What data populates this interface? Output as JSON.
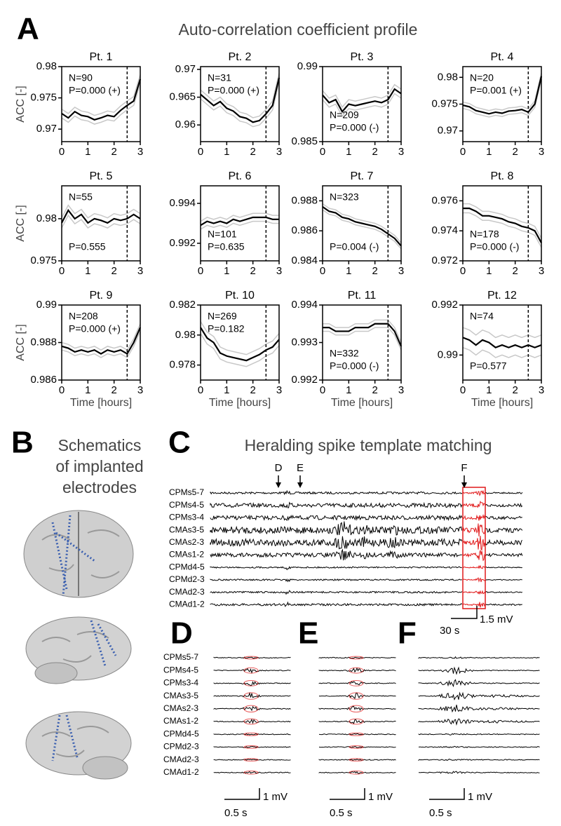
{
  "panel_a": {
    "letter": "A",
    "title": "Auto-correlation coefficient profile"
  },
  "chart_data": [
    {
      "type": "line",
      "title": "Pt. 1",
      "ylabel": "ACC [-]",
      "annotations": [
        "N=90",
        "P=0.000 (+)"
      ],
      "x": [
        0,
        0.25,
        0.5,
        0.75,
        1,
        1.25,
        1.5,
        1.75,
        2,
        2.25,
        2.5,
        2.75,
        3
      ],
      "xlim": [
        0,
        3
      ],
      "xticks": [
        0,
        1,
        2,
        3
      ],
      "ylim": [
        0.968,
        0.98
      ],
      "yticks": [
        0.97,
        0.975,
        0.98
      ],
      "vline": 2.5,
      "series": [
        {
          "color": "#000000",
          "error": 0.0007,
          "error_color": "#c8c8c8",
          "values": [
            0.9725,
            0.9718,
            0.9728,
            0.9722,
            0.972,
            0.9715,
            0.9718,
            0.9722,
            0.972,
            0.973,
            0.9738,
            0.9745,
            0.978
          ]
        }
      ]
    },
    {
      "type": "line",
      "title": "Pt. 2",
      "annotations": [
        "N=31",
        "P=0.000 (+)"
      ],
      "x": [
        0,
        0.25,
        0.5,
        0.75,
        1,
        1.25,
        1.5,
        1.75,
        2,
        2.25,
        2.5,
        2.75,
        3
      ],
      "xlim": [
        0,
        3
      ],
      "xticks": [
        0,
        1,
        2,
        3
      ],
      "ylim": [
        0.957,
        0.9705
      ],
      "yticks": [
        0.96,
        0.965,
        0.97
      ],
      "vline": 2.5,
      "series": [
        {
          "color": "#000000",
          "error": 0.0008,
          "error_color": "#c8c8c8",
          "values": [
            0.9655,
            0.9645,
            0.9635,
            0.9642,
            0.963,
            0.9625,
            0.9615,
            0.9612,
            0.9605,
            0.9608,
            0.962,
            0.9635,
            0.9685
          ]
        }
      ]
    },
    {
      "type": "line",
      "title": "Pt. 3",
      "annotations": [
        "N=209",
        "P=0.000 (-)"
      ],
      "x": [
        0,
        0.25,
        0.5,
        0.75,
        1,
        1.25,
        1.5,
        1.75,
        2,
        2.25,
        2.5,
        2.75,
        3
      ],
      "xlim": [
        0,
        3
      ],
      "xticks": [
        0,
        1,
        2,
        3
      ],
      "ylim": [
        0.985,
        0.99
      ],
      "yticks": [
        0.985,
        0.99
      ],
      "vline": 2.5,
      "series": [
        {
          "color": "#000000",
          "error": 0.0003,
          "error_color": "#c8c8c8",
          "values": [
            0.9881,
            0.9876,
            0.9878,
            0.987,
            0.9875,
            0.9874,
            0.9875,
            0.9876,
            0.9877,
            0.9876,
            0.9878,
            0.9885,
            0.9882
          ]
        }
      ]
    },
    {
      "type": "line",
      "title": "Pt. 4",
      "annotations": [
        "N=20",
        "P=0.001 (+)"
      ],
      "x": [
        0,
        0.25,
        0.5,
        0.75,
        1,
        1.25,
        1.5,
        1.75,
        2,
        2.25,
        2.5,
        2.75,
        3
      ],
      "xlim": [
        0,
        3
      ],
      "xticks": [
        0,
        1,
        2,
        3
      ],
      "ylim": [
        0.968,
        0.982
      ],
      "yticks": [
        0.97,
        0.975,
        0.98
      ],
      "vline": 2.5,
      "series": [
        {
          "color": "#000000",
          "error": 0.0006,
          "error_color": "#c8c8c8",
          "values": [
            0.9748,
            0.9745,
            0.9738,
            0.9735,
            0.9732,
            0.9735,
            0.9733,
            0.9737,
            0.9738,
            0.974,
            0.9735,
            0.975,
            0.9802
          ]
        }
      ]
    },
    {
      "type": "line",
      "title": "Pt. 5",
      "ylabel": "ACC [-]",
      "annotations": [
        "N=55",
        "P=0.555"
      ],
      "x": [
        0,
        0.25,
        0.5,
        0.75,
        1,
        1.25,
        1.5,
        1.75,
        2,
        2.25,
        2.5,
        2.75,
        3
      ],
      "xlim": [
        0,
        3
      ],
      "xticks": [
        0,
        1,
        2,
        3
      ],
      "ylim": [
        0.975,
        0.9839
      ],
      "yticks": [
        0.975,
        0.98
      ],
      "vline": 2.5,
      "series": [
        {
          "color": "#000000",
          "error": 0.0006,
          "error_color": "#c8c8c8",
          "values": [
            0.9795,
            0.981,
            0.98,
            0.9805,
            0.9795,
            0.98,
            0.9798,
            0.9795,
            0.98,
            0.9798,
            0.98,
            0.9805,
            0.98
          ]
        }
      ]
    },
    {
      "type": "line",
      "title": "Pt. 6",
      "annotations": [
        "N=101",
        "P=0.635"
      ],
      "x": [
        0,
        0.25,
        0.5,
        0.75,
        1,
        1.25,
        1.5,
        1.75,
        2,
        2.25,
        2.5,
        2.75,
        3
      ],
      "xlim": [
        0,
        3
      ],
      "xticks": [
        0,
        1,
        2,
        3
      ],
      "ylim": [
        0.99112,
        0.99488
      ],
      "yticks": [
        0.992,
        0.994
      ],
      "vline": 2.5,
      "series": [
        {
          "color": "#000000",
          "error": 0.0002,
          "error_color": "#c8c8c8",
          "values": [
            0.9929,
            0.9931,
            0.993,
            0.9931,
            0.993,
            0.9932,
            0.9931,
            0.9932,
            0.9933,
            0.9933,
            0.9933,
            0.9932,
            0.9932
          ]
        }
      ]
    },
    {
      "type": "line",
      "title": "Pt. 7",
      "annotations": [
        "N=323",
        "P=0.004 (-)"
      ],
      "x": [
        0,
        0.25,
        0.5,
        0.75,
        1,
        1.25,
        1.5,
        1.75,
        2,
        2.25,
        2.5,
        2.75,
        3
      ],
      "xlim": [
        0,
        3
      ],
      "xticks": [
        0,
        1,
        2,
        3
      ],
      "ylim": [
        0.984,
        0.989
      ],
      "yticks": [
        0.984,
        0.986,
        0.988
      ],
      "vline": 2.5,
      "series": [
        {
          "color": "#000000",
          "error": 0.0002,
          "error_color": "#c8c8c8",
          "values": [
            0.9876,
            0.9873,
            0.9872,
            0.9869,
            0.9868,
            0.9866,
            0.9865,
            0.9864,
            0.9863,
            0.9861,
            0.9858,
            0.9855,
            0.985
          ]
        }
      ]
    },
    {
      "type": "line",
      "title": "Pt. 8",
      "annotations": [
        "N=178",
        "P=0.000 (-)"
      ],
      "x": [
        0,
        0.25,
        0.5,
        0.75,
        1,
        1.25,
        1.5,
        1.75,
        2,
        2.25,
        2.5,
        2.75,
        3
      ],
      "xlim": [
        0,
        3
      ],
      "xticks": [
        0,
        1,
        2,
        3
      ],
      "ylim": [
        0.972,
        0.977
      ],
      "yticks": [
        0.972,
        0.974,
        0.976
      ],
      "vline": 2.5,
      "series": [
        {
          "color": "#000000",
          "error": 0.0003,
          "error_color": "#c8c8c8",
          "values": [
            0.9755,
            0.9755,
            0.9753,
            0.975,
            0.975,
            0.9749,
            0.9748,
            0.9746,
            0.9745,
            0.9743,
            0.9742,
            0.974,
            0.9732
          ]
        }
      ]
    },
    {
      "type": "line",
      "title": "Pt. 9",
      "ylabel": "ACC [-]",
      "xlabel": "Time [hours]",
      "annotations": [
        "N=208",
        "P=0.000 (+)"
      ],
      "x": [
        0,
        0.25,
        0.5,
        0.75,
        1,
        1.25,
        1.5,
        1.75,
        2,
        2.25,
        2.5,
        2.75,
        3
      ],
      "xlim": [
        0,
        3
      ],
      "xticks": [
        0,
        1,
        2,
        3
      ],
      "ylim": [
        0.986,
        0.99
      ],
      "yticks": [
        0.986,
        0.988,
        0.99
      ],
      "vline": 2.5,
      "series": [
        {
          "color": "#000000",
          "error": 0.0002,
          "error_color": "#c8c8c8",
          "values": [
            0.9878,
            0.9877,
            0.9875,
            0.9876,
            0.9875,
            0.9876,
            0.9874,
            0.9876,
            0.9875,
            0.9876,
            0.9874,
            0.988,
            0.9888
          ]
        }
      ]
    },
    {
      "type": "line",
      "title": "Pt. 10",
      "xlabel": "Time [hours]",
      "annotations": [
        "N=269",
        "P=0.182"
      ],
      "x": [
        0,
        0.25,
        0.5,
        0.75,
        1,
        1.25,
        1.5,
        1.75,
        2,
        2.25,
        2.5,
        2.75,
        3
      ],
      "xlim": [
        0,
        3
      ],
      "xticks": [
        0,
        1,
        2,
        3
      ],
      "ylim": [
        0.977,
        0.982
      ],
      "yticks": [
        0.978,
        0.98,
        0.982
      ],
      "vline": 2.5,
      "series": [
        {
          "color": "#000000",
          "error": 0.0004,
          "error_color": "#c8c8c8",
          "values": [
            0.9805,
            0.9798,
            0.9795,
            0.9788,
            0.9786,
            0.9785,
            0.9784,
            0.9783,
            0.9785,
            0.9787,
            0.979,
            0.9792,
            0.9797
          ]
        }
      ]
    },
    {
      "type": "line",
      "title": "Pt. 11",
      "xlabel": "Time [hours]",
      "annotations": [
        "N=332",
        "P=0.000 (-)"
      ],
      "x": [
        0,
        0.25,
        0.5,
        0.75,
        1,
        1.25,
        1.5,
        1.75,
        2,
        2.25,
        2.5,
        2.75,
        3
      ],
      "xlim": [
        0,
        3
      ],
      "xticks": [
        0,
        1,
        2,
        3
      ],
      "ylim": [
        0.992,
        0.994
      ],
      "yticks": [
        0.992,
        0.993,
        0.994
      ],
      "vline": 2.5,
      "series": [
        {
          "color": "#000000",
          "error": 0.0001,
          "error_color": "#c8c8c8",
          "values": [
            0.9934,
            0.9934,
            0.9933,
            0.9933,
            0.9933,
            0.9934,
            0.9934,
            0.9934,
            0.9935,
            0.9935,
            0.9935,
            0.9933,
            0.9929
          ]
        }
      ]
    },
    {
      "type": "line",
      "title": "Pt. 12",
      "xlabel": "Time [hours]",
      "annotations": [
        "N=74",
        "P=0.577"
      ],
      "x": [
        0,
        0.25,
        0.5,
        0.75,
        1,
        1.25,
        1.5,
        1.75,
        2,
        2.25,
        2.5,
        2.75,
        3
      ],
      "xlim": [
        0,
        3
      ],
      "xticks": [
        0,
        1,
        2,
        3
      ],
      "ylim": [
        0.989,
        0.992
      ],
      "yticks": [
        0.99,
        0.992
      ],
      "vline": 2.5,
      "series": [
        {
          "color": "#000000",
          "error": 0.0004,
          "error_color": "#c8c8c8",
          "values": [
            0.9907,
            0.9906,
            0.9904,
            0.9906,
            0.9905,
            0.9903,
            0.9904,
            0.9903,
            0.9904,
            0.9903,
            0.9904,
            0.9903,
            0.9904
          ]
        }
      ]
    }
  ],
  "panel_b": {
    "letter": "B",
    "title_lines": [
      "Schematics",
      "of implanted",
      "electrodes"
    ]
  },
  "panel_c": {
    "letter": "C",
    "title": "Heralding spike template matching",
    "channels": [
      "CPMs5-7",
      "CPMs4-5",
      "CPMs3-4",
      "CMAs3-5",
      "CMAs2-3",
      "CMAs1-2",
      "CPMd4-5",
      "CPMd2-3",
      "CMAd2-3",
      "CMAd1-2"
    ],
    "markers": [
      "D",
      "E",
      "F"
    ],
    "scale_time": "30 s",
    "scale_amp": "1.5 mV"
  },
  "panel_d": {
    "letter": "D",
    "scale_time": "0.5 s",
    "scale_amp": "1 mV"
  },
  "panel_e": {
    "letter": "E",
    "scale_time": "0.5 s",
    "scale_amp": "1 mV"
  },
  "panel_f": {
    "letter": "F",
    "scale_time": "0.5 s",
    "scale_amp": "1 mV"
  }
}
